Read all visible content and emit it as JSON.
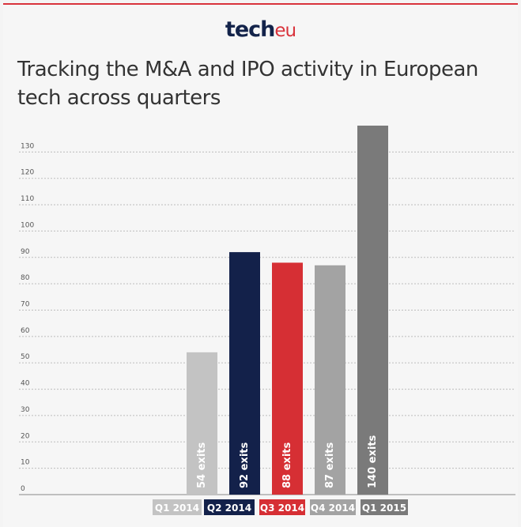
{
  "logo": {
    "part1": "tech",
    "part2": "eu"
  },
  "chart_data": {
    "type": "bar",
    "title": "Tracking the M&A and IPO activity in European tech across quarters",
    "categories": [
      "Q1 2014",
      "Q2 2014",
      "Q3 2014",
      "Q4 2014",
      "Q1 2015"
    ],
    "values": [
      54,
      92,
      88,
      87,
      140
    ],
    "bar_labels": [
      "54 exits",
      "92 exits",
      "88 exits",
      "87 exits",
      "140 exits"
    ],
    "colors": [
      "#c3c3c3",
      "#13214a",
      "#d62f34",
      "#a3a3a3",
      "#7a7a7a"
    ],
    "yticks": [
      0,
      10,
      20,
      30,
      40,
      50,
      60,
      70,
      80,
      90,
      100,
      110,
      120,
      130
    ],
    "ylim": [
      0,
      140
    ],
    "grid": true,
    "legend": "bottom"
  }
}
